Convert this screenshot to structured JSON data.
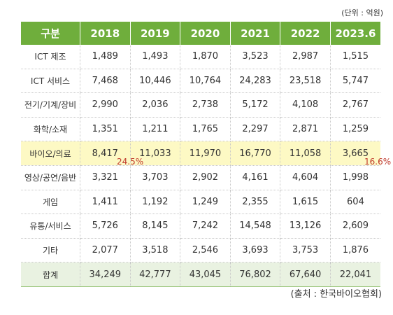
{
  "unit_note": "(단위 : 억원)",
  "header": [
    "구분",
    "2018",
    "2019",
    "2020",
    "2021",
    "2022",
    "2023.6"
  ],
  "rows": [
    {
      "label": "ICT 제조",
      "values": [
        "1,489",
        "1,493",
        "1,870",
        "3,523",
        "2,987",
        "1,515"
      ]
    },
    {
      "label": "ICT 서비스",
      "values": [
        "7,468",
        "10,446",
        "10,764",
        "24,283",
        "23,518",
        "5,747"
      ]
    },
    {
      "label": "전기/기계/장비",
      "values": [
        "2,990",
        "2,036",
        "2,738",
        "5,172",
        "4,108",
        "2,767"
      ]
    },
    {
      "label": "화학/소재",
      "values": [
        "1,351",
        "1,211",
        "1,765",
        "2,297",
        "2,871",
        "1,259"
      ]
    },
    {
      "label": "바이오/의료",
      "values": [
        "8,417",
        "11,033",
        "11,970",
        "16,770",
        "11,058",
        "3,665"
      ]
    },
    {
      "label": "영상/공연/음반",
      "values": [
        "3,321",
        "3,703",
        "2,902",
        "4,161",
        "4,604",
        "1,998"
      ]
    },
    {
      "label": "게임",
      "values": [
        "1,411",
        "1,192",
        "1,249",
        "2,355",
        "1,615",
        "604"
      ]
    },
    {
      "label": "유통/서비스",
      "values": [
        "5,726",
        "8,145",
        "7,242",
        "14,548",
        "13,126",
        "2,609"
      ]
    },
    {
      "label": "기타",
      "values": [
        "2,077",
        "3,518",
        "2,546",
        "3,693",
        "3,753",
        "1,876"
      ]
    },
    {
      "label": "합계",
      "values": [
        "34,249",
        "42,777",
        "43,045",
        "76,802",
        "67,640",
        "22,041"
      ]
    }
  ],
  "annotations": {
    "left_pct": "24.5%",
    "right_pct": "16.6%"
  },
  "source_note": "(출처 : 한국바이오협회)",
  "colors": {
    "header_bg": "#6fae3c",
    "highlight_row": "#fdf9c4",
    "total_row": "#e9f2e1",
    "pct_text": "#c0392b"
  }
}
